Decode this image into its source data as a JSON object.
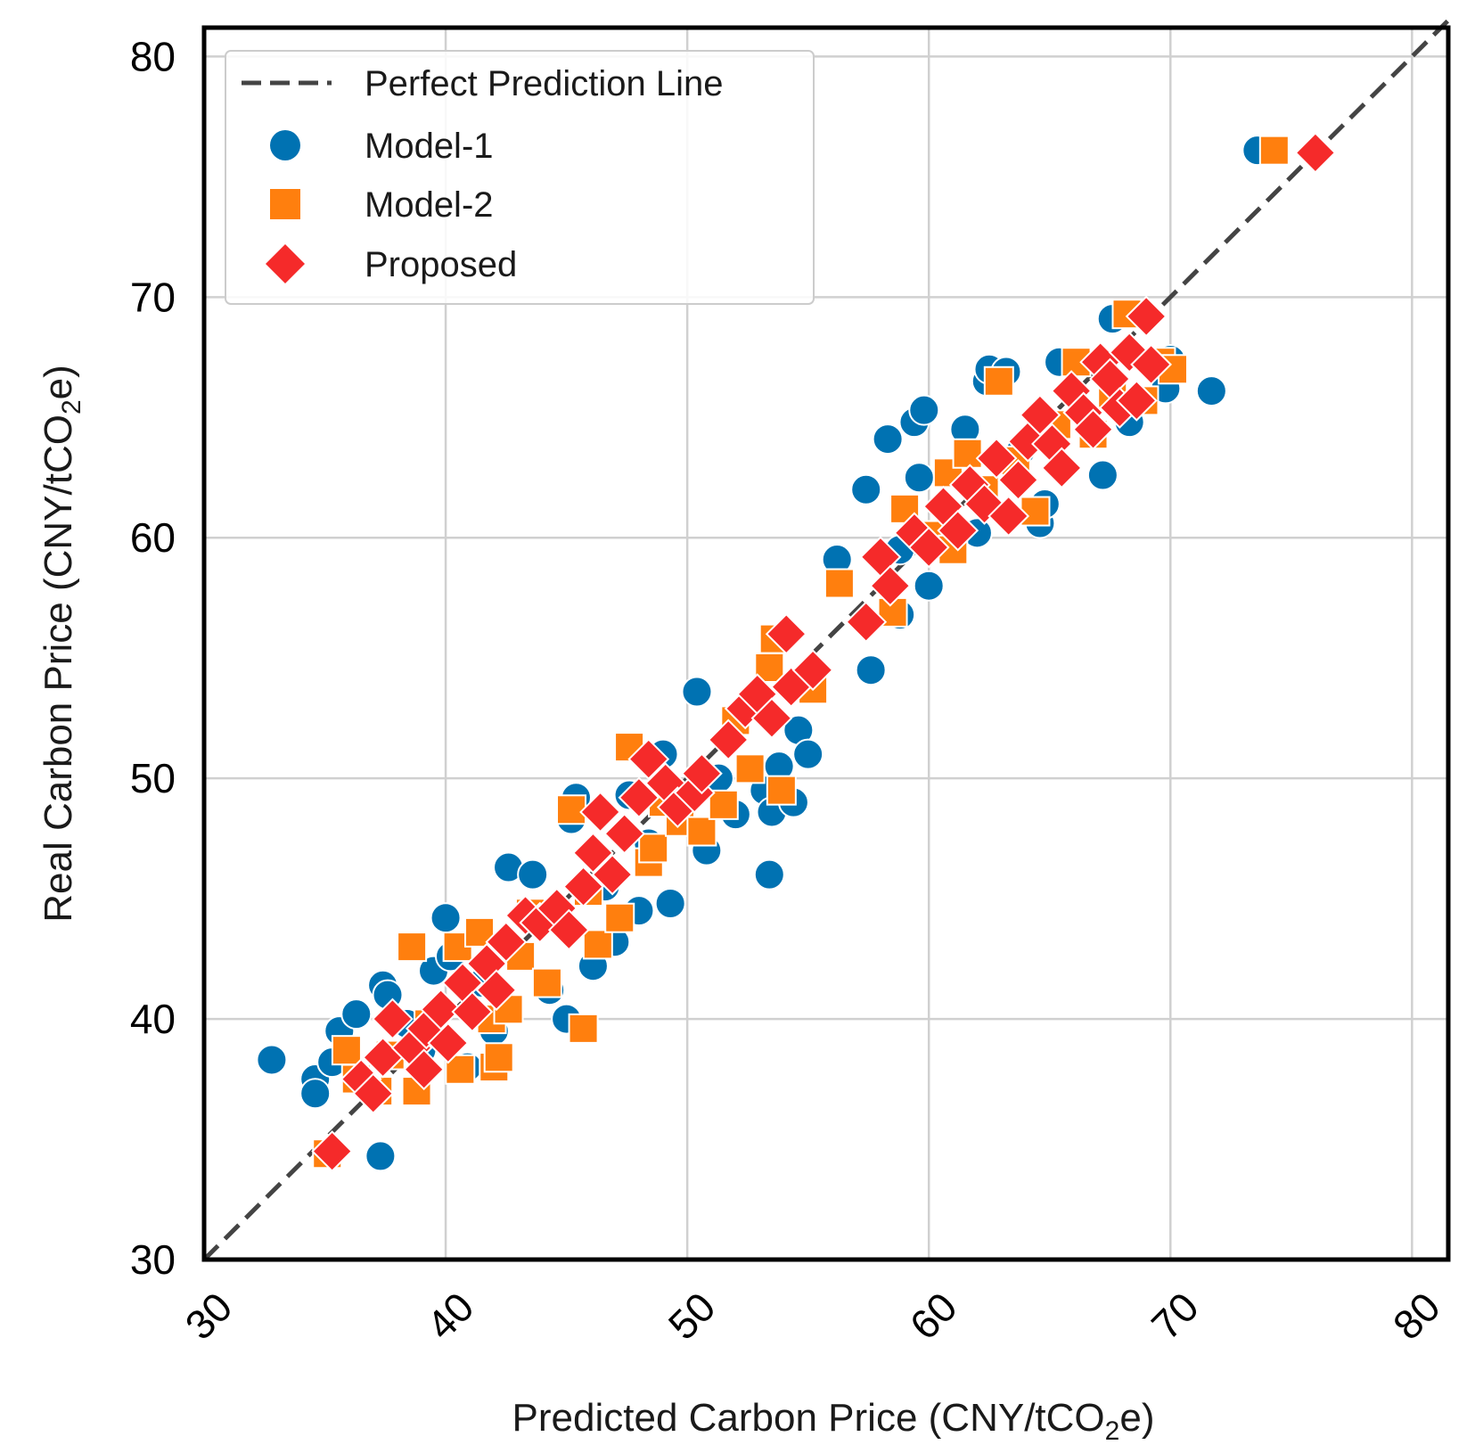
{
  "chart_data": {
    "type": "scatter",
    "title": "",
    "xlabel_main": "Predicted Carbon Price (CNY/tCO",
    "xlabel_sub": "2",
    "xlabel_end": "e)",
    "ylabel_main": "Real Carbon Price (CNY/tCO",
    "ylabel_sub": "2",
    "ylabel_end": "e)",
    "xlim": [
      30,
      81.5
    ],
    "ylim": [
      30,
      81.2
    ],
    "xticks": [
      30,
      40,
      50,
      60,
      70,
      80
    ],
    "yticks": [
      30,
      40,
      50,
      60,
      70,
      80
    ],
    "xtick_labels": [
      "30",
      "40",
      "50",
      "60",
      "70",
      "80"
    ],
    "ytick_labels": [
      "30",
      "40",
      "50",
      "60",
      "70",
      "80"
    ],
    "grid": true,
    "legend_position": "top-left",
    "reference_line": {
      "name": "Perfect Prediction Line",
      "from": [
        30,
        30
      ],
      "to": [
        81.5,
        81.5
      ],
      "color": "#444444",
      "style": "dashed"
    },
    "series": [
      {
        "name": "Model-1",
        "marker": "circle",
        "color": "#0072B2",
        "points": [
          [
            32.8,
            38.3
          ],
          [
            34.6,
            37.5
          ],
          [
            34.6,
            36.9
          ],
          [
            35.3,
            38.2
          ],
          [
            35.6,
            39.5
          ],
          [
            36.3,
            40.2
          ],
          [
            37.4,
            41.4
          ],
          [
            37.6,
            41.0
          ],
          [
            37.3,
            34.3
          ],
          [
            38.4,
            39.8
          ],
          [
            39.0,
            38.7
          ],
          [
            39.5,
            42.0
          ],
          [
            40.0,
            44.2
          ],
          [
            40.2,
            42.6
          ],
          [
            40.9,
            38.0
          ],
          [
            41.5,
            41.5
          ],
          [
            42.0,
            39.5
          ],
          [
            42.6,
            46.3
          ],
          [
            43.6,
            46.0
          ],
          [
            44.3,
            41.2
          ],
          [
            45.0,
            40.0
          ],
          [
            45.2,
            48.3
          ],
          [
            45.4,
            49.2
          ],
          [
            46.1,
            42.2
          ],
          [
            46.6,
            45.5
          ],
          [
            47.0,
            43.2
          ],
          [
            47.6,
            49.3
          ],
          [
            48.0,
            44.5
          ],
          [
            48.4,
            47.3
          ],
          [
            49.0,
            51.0
          ],
          [
            49.3,
            44.8
          ],
          [
            50.4,
            53.6
          ],
          [
            50.8,
            47.0
          ],
          [
            51.3,
            50.0
          ],
          [
            52.0,
            48.5
          ],
          [
            53.2,
            49.5
          ],
          [
            53.5,
            48.6
          ],
          [
            53.4,
            46.0
          ],
          [
            53.8,
            50.5
          ],
          [
            54.4,
            49.0
          ],
          [
            54.6,
            52.0
          ],
          [
            55.0,
            51.0
          ],
          [
            56.2,
            59.1
          ],
          [
            57.6,
            54.5
          ],
          [
            57.4,
            62.0
          ],
          [
            58.3,
            64.1
          ],
          [
            58.8,
            59.5
          ],
          [
            58.8,
            56.8
          ],
          [
            59.4,
            64.8
          ],
          [
            59.8,
            65.3
          ],
          [
            59.6,
            62.5
          ],
          [
            60.0,
            58.0
          ],
          [
            61.5,
            64.5
          ],
          [
            62.0,
            60.2
          ],
          [
            62.4,
            66.5
          ],
          [
            62.5,
            67.0
          ],
          [
            63.2,
            66.9
          ],
          [
            63.8,
            63.6
          ],
          [
            64.6,
            60.6
          ],
          [
            64.8,
            61.4
          ],
          [
            65.4,
            67.3
          ],
          [
            67.2,
            62.6
          ],
          [
            67.6,
            69.1
          ],
          [
            68.3,
            64.8
          ],
          [
            69.8,
            66.2
          ],
          [
            70.0,
            67.4
          ],
          [
            71.7,
            66.1
          ],
          [
            73.6,
            76.1
          ]
        ]
      },
      {
        "name": "Model-2",
        "marker": "square",
        "color": "#FF7F0E",
        "points": [
          [
            35.1,
            34.4
          ],
          [
            35.9,
            38.7
          ],
          [
            36.3,
            37.5
          ],
          [
            37.2,
            37.0
          ],
          [
            37.7,
            38.5
          ],
          [
            38.6,
            43.0
          ],
          [
            38.8,
            37.0
          ],
          [
            39.3,
            39.8
          ],
          [
            40.5,
            43.0
          ],
          [
            40.6,
            37.9
          ],
          [
            41.4,
            43.6
          ],
          [
            41.9,
            40.0
          ],
          [
            42.0,
            38.0
          ],
          [
            42.2,
            38.4
          ],
          [
            42.6,
            40.4
          ],
          [
            43.1,
            42.6
          ],
          [
            43.5,
            44.4
          ],
          [
            44.2,
            41.5
          ],
          [
            45.7,
            39.6
          ],
          [
            45.2,
            48.7
          ],
          [
            45.9,
            45.3
          ],
          [
            46.3,
            43.1
          ],
          [
            47.2,
            44.2
          ],
          [
            47.6,
            51.3
          ],
          [
            48.4,
            46.5
          ],
          [
            48.6,
            47.1
          ],
          [
            49.0,
            49.0
          ],
          [
            49.7,
            48.2
          ],
          [
            50.6,
            47.8
          ],
          [
            51.5,
            48.9
          ],
          [
            52.0,
            52.4
          ],
          [
            52.6,
            50.4
          ],
          [
            53.6,
            55.8
          ],
          [
            53.4,
            54.6
          ],
          [
            53.9,
            49.5
          ],
          [
            55.2,
            53.7
          ],
          [
            56.3,
            58.1
          ],
          [
            58.5,
            56.9
          ],
          [
            59.0,
            61.2
          ],
          [
            60.3,
            60.1
          ],
          [
            60.8,
            62.7
          ],
          [
            61.0,
            59.5
          ],
          [
            61.6,
            63.5
          ],
          [
            62.3,
            62.0
          ],
          [
            62.9,
            66.5
          ],
          [
            63.6,
            63.2
          ],
          [
            64.4,
            61.1
          ],
          [
            65.3,
            64.7
          ],
          [
            66.1,
            67.3
          ],
          [
            66.8,
            64.3
          ],
          [
            67.6,
            66.0
          ],
          [
            68.2,
            69.3
          ],
          [
            68.9,
            65.7
          ],
          [
            69.6,
            67.3
          ],
          [
            70.1,
            67.0
          ],
          [
            74.3,
            76.1
          ]
        ]
      },
      {
        "name": "Proposed",
        "marker": "diamond",
        "color": "#F52A2A",
        "points": [
          [
            35.3,
            34.5
          ],
          [
            36.5,
            37.5
          ],
          [
            37.0,
            36.9
          ],
          [
            37.4,
            38.4
          ],
          [
            37.8,
            40.0
          ],
          [
            38.6,
            38.8
          ],
          [
            39.1,
            37.9
          ],
          [
            39.2,
            39.6
          ],
          [
            39.8,
            40.4
          ],
          [
            40.1,
            39.0
          ],
          [
            40.7,
            41.5
          ],
          [
            41.1,
            40.3
          ],
          [
            41.7,
            42.3
          ],
          [
            42.1,
            41.2
          ],
          [
            42.5,
            43.2
          ],
          [
            43.3,
            44.3
          ],
          [
            43.9,
            44.0
          ],
          [
            44.6,
            44.6
          ],
          [
            45.1,
            43.7
          ],
          [
            45.7,
            45.5
          ],
          [
            46.1,
            46.9
          ],
          [
            46.4,
            48.6
          ],
          [
            46.9,
            46.0
          ],
          [
            47.4,
            47.7
          ],
          [
            48.0,
            49.2
          ],
          [
            48.4,
            50.8
          ],
          [
            49.1,
            49.8
          ],
          [
            49.6,
            48.8
          ],
          [
            50.3,
            49.4
          ],
          [
            50.6,
            50.2
          ],
          [
            51.7,
            51.6
          ],
          [
            52.4,
            52.9
          ],
          [
            52.9,
            53.5
          ],
          [
            53.5,
            52.5
          ],
          [
            54.1,
            56.0
          ],
          [
            54.3,
            53.8
          ],
          [
            55.2,
            54.5
          ],
          [
            57.4,
            56.5
          ],
          [
            58.0,
            59.2
          ],
          [
            58.4,
            58.0
          ],
          [
            59.4,
            60.2
          ],
          [
            60.0,
            59.6
          ],
          [
            60.6,
            61.3
          ],
          [
            61.2,
            60.3
          ],
          [
            61.7,
            62.2
          ],
          [
            62.3,
            61.4
          ],
          [
            62.8,
            63.3
          ],
          [
            63.3,
            60.9
          ],
          [
            63.7,
            62.4
          ],
          [
            64.1,
            64.0
          ],
          [
            64.6,
            65.1
          ],
          [
            65.1,
            63.9
          ],
          [
            65.5,
            62.9
          ],
          [
            65.9,
            66.1
          ],
          [
            66.4,
            65.2
          ],
          [
            66.8,
            64.5
          ],
          [
            67.1,
            67.3
          ],
          [
            67.5,
            66.6
          ],
          [
            67.9,
            65.4
          ],
          [
            68.3,
            67.7
          ],
          [
            68.6,
            65.7
          ],
          [
            69.0,
            69.2
          ],
          [
            69.2,
            67.2
          ],
          [
            76.0,
            76.0
          ]
        ]
      }
    ]
  }
}
